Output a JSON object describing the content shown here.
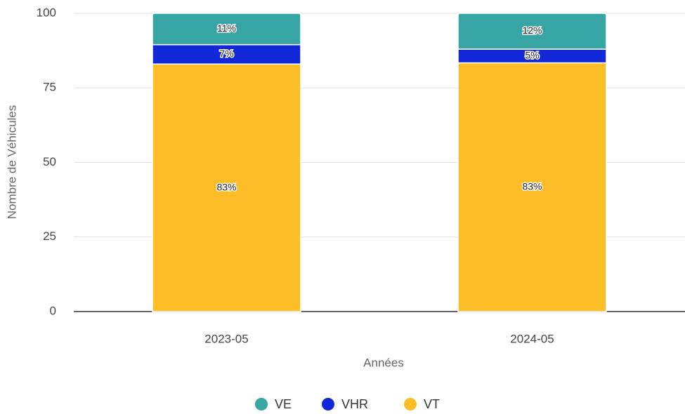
{
  "chart_data": {
    "type": "stacked_bar",
    "categories": [
      "2023-05",
      "2024-05"
    ],
    "series": [
      {
        "name": "VT",
        "color": "#fdbd27",
        "values": [
          83,
          83.4
        ],
        "value_labels": [
          "83%",
          "83%"
        ]
      },
      {
        "name": "VHR",
        "color": "#1227d8",
        "values": [
          6.5,
          4.6
        ],
        "value_labels": [
          "7%",
          "5%"
        ]
      },
      {
        "name": "VE",
        "color": "#36a5a3",
        "values": [
          10.5,
          12
        ],
        "value_labels": [
          "11%",
          "12%"
        ]
      }
    ],
    "legend_order": [
      "VE",
      "VHR",
      "VT"
    ],
    "xlabel": "Années",
    "ylabel": "Nombre de Véhicules",
    "ylim": [
      0,
      100
    ],
    "yticks": [
      0,
      25,
      50,
      75,
      100
    ],
    "grid": true,
    "legend": "bottom"
  }
}
